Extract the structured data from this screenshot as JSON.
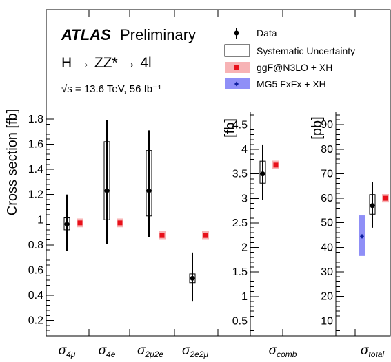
{
  "chart_data": {
    "type": "scatter",
    "experiment": "ATLAS",
    "status": "Preliminary",
    "process": "H → ZZ* → 4l",
    "energy": "√s = 13.6 TeV, 56 fb⁻¹",
    "legend_placement": "top-right",
    "legend": [
      {
        "label": "Data",
        "marker": "point-with-errorbar",
        "color": "#000000"
      },
      {
        "label": "Systematic Uncertainty",
        "marker": "open-box",
        "color": "#000000"
      },
      {
        "label": "ggF@N3LO + XH",
        "marker": "square-with-band",
        "color": "#e8101a",
        "band_color": "#f7b3b5"
      },
      {
        "label": "MG5 FxFx + XH",
        "marker": "diamond-with-band",
        "color": "#1020a0",
        "band_color": "#8f8ff7"
      }
    ],
    "panels": [
      {
        "ylabel": "Cross section [fb]",
        "y_ticks": [
          "0.2",
          "0.4",
          "0.6",
          "0.8",
          "1",
          "1.2",
          "1.4",
          "1.6",
          "1.8"
        ],
        "ylim": [
          0,
          2.0
        ],
        "categories": [
          {
            "label": "σ",
            "sub": "4μ",
            "data": 0.965,
            "stat_lo": 0.75,
            "stat_hi": 1.2,
            "syst_lo": 0.92,
            "syst_hi": 1.015,
            "pred": 0.975,
            "pred_lo": 0.94,
            "pred_hi": 1.01
          },
          {
            "label": "σ",
            "sub": "4e",
            "data": 1.23,
            "stat_lo": 0.81,
            "stat_hi": 1.79,
            "syst_lo": 1.0,
            "syst_hi": 1.62,
            "pred": 0.975,
            "pred_lo": 0.94,
            "pred_hi": 1.01
          },
          {
            "label": "σ",
            "sub": "2μ2e",
            "data": 1.23,
            "stat_lo": 0.86,
            "stat_hi": 1.71,
            "syst_lo": 1.03,
            "syst_hi": 1.55,
            "pred": 0.875,
            "pred_lo": 0.84,
            "pred_hi": 0.91
          },
          {
            "label": "σ",
            "sub": "2e2μ",
            "data": 0.535,
            "stat_lo": 0.35,
            "stat_hi": 0.74,
            "syst_lo": 0.5,
            "syst_hi": 0.57,
            "pred": 0.875,
            "pred_lo": 0.84,
            "pred_hi": 0.91
          }
        ]
      },
      {
        "ylabel": "[fb]",
        "y_ticks": [
          "0.5",
          "1",
          "1.5",
          "2",
          "2.5",
          "3",
          "3.5",
          "4",
          "4.5"
        ],
        "ylim": [
          0,
          5.0
        ],
        "categories": [
          {
            "label": "σ",
            "sub": "comb",
            "data": 3.5,
            "stat_lo": 2.97,
            "stat_hi": 4.1,
            "syst_lo": 3.31,
            "syst_hi": 3.76,
            "pred": 3.68,
            "pred_lo": 3.6,
            "pred_hi": 3.77
          }
        ]
      },
      {
        "ylabel": "[pb]",
        "y_ticks": [
          "10",
          "20",
          "30",
          "40",
          "50",
          "60",
          "70",
          "80",
          "90"
        ],
        "ylim": [
          0,
          100
        ],
        "categories": [
          {
            "label": "σ",
            "sub": "total",
            "data": 57.0,
            "stat_lo": 48.0,
            "stat_hi": 66.5,
            "syst_lo": 53.5,
            "syst_hi": 61.5,
            "pred": 60.0,
            "pred_lo": 58.3,
            "pred_hi": 61.7,
            "pred2": 44.5,
            "pred2_lo": 36.5,
            "pred2_hi": 53.0
          }
        ]
      }
    ]
  }
}
